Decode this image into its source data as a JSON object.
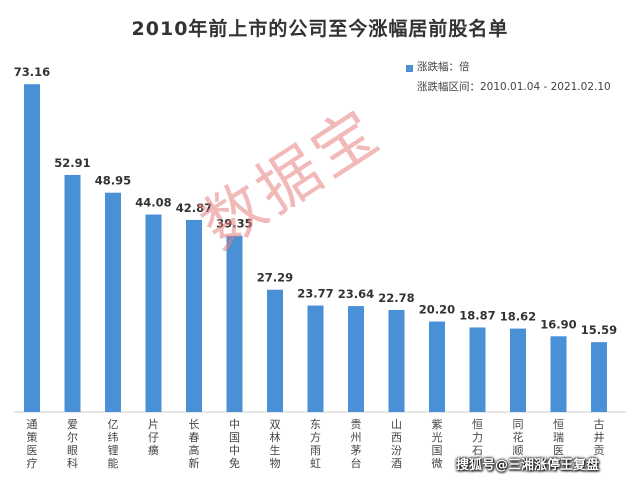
{
  "chart_data": {
    "type": "bar",
    "title": "2010年前上市的公司至今涨幅居前股名单",
    "categories": [
      "通策医疗",
      "爱尔眼科",
      "亿纬锂能",
      "片仔癀",
      "长春高新",
      "中国中免",
      "双林生物",
      "东方雨虹",
      "贵州茅台",
      "山西汾酒",
      "紫光国微",
      "恒力石",
      "同花顺",
      "恒瑞医",
      "古井贡"
    ],
    "series": [
      {
        "name": "涨跌幅：倍",
        "values": [
          73.16,
          52.91,
          48.95,
          44.08,
          42.87,
          39.35,
          27.29,
          23.77,
          23.64,
          22.78,
          20.2,
          18.87,
          18.62,
          16.9,
          15.59
        ]
      }
    ],
    "value_labels": [
      "73.16",
      "52.91",
      "48.95",
      "44.08",
      "42.87",
      "39.35",
      "27.29",
      "23.77",
      "23.64",
      "22.78",
      "20.20",
      "18.87",
      "18.62",
      "16.90",
      "15.59"
    ],
    "legend": {
      "series_label": "涨跌幅：倍",
      "range_label": "涨跌幅区间：2010.01.04 - 2021.02.10",
      "position": "top-right"
    },
    "ylim": [
      0,
      80
    ],
    "grid": false,
    "bar_color": "#4a90d6",
    "label_color": "#333333"
  },
  "watermark": "数据宝",
  "footer": "搜狐号@三湘涨停王复盘"
}
